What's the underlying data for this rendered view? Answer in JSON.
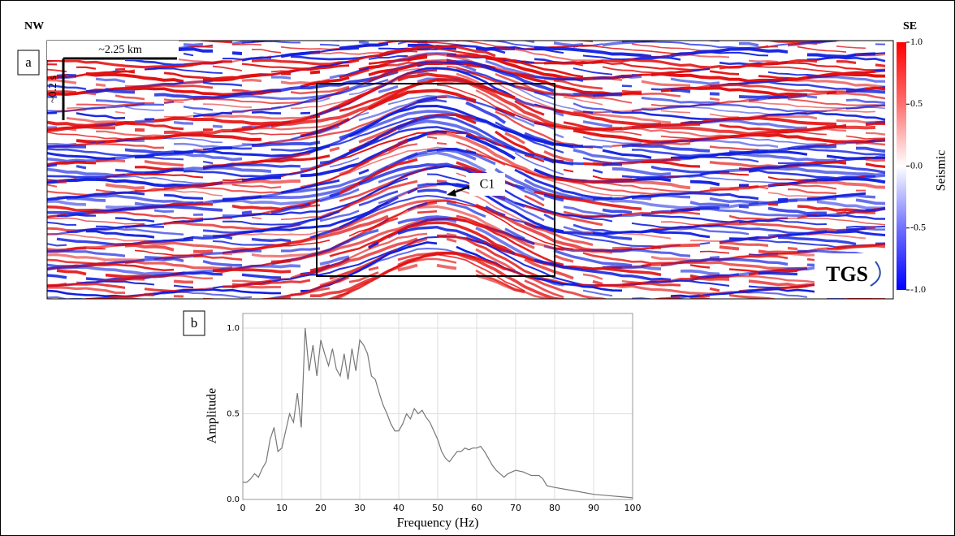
{
  "panel_a": {
    "panel_label": "a",
    "left_label": "NW",
    "right_label": "SE",
    "scale_horizontal": "~2.25 km",
    "scale_vertical": "~0.2 s",
    "annotation": "C1",
    "logo": "TGS",
    "colorbar": {
      "label": "Seismic",
      "lim": [
        -1,
        1
      ],
      "ticks": [
        {
          "value": 1,
          "label": "1.0"
        },
        {
          "value": 0.5,
          "label": "0.5"
        },
        {
          "value": 0,
          "label": "0.0"
        },
        {
          "value": -0.5,
          "label": "-0.5"
        },
        {
          "value": -1,
          "label": "-1.0"
        }
      ]
    }
  },
  "chart_data": {
    "type": "line",
    "panel_label": "b",
    "xlabel": "Frequency (Hz)",
    "ylabel": "Amplitude",
    "color": "#777777",
    "x": [
      0,
      1,
      2,
      3,
      4,
      5,
      6,
      7,
      8,
      9,
      10,
      11,
      12,
      13,
      14,
      15,
      16,
      17,
      18,
      19,
      20,
      21,
      22,
      23,
      24,
      25,
      26,
      27,
      28,
      29,
      30,
      31,
      32,
      33,
      34,
      35,
      36,
      37,
      38,
      39,
      40,
      41,
      42,
      43,
      44,
      45,
      46,
      47,
      48,
      49,
      50,
      51,
      52,
      53,
      54,
      55,
      56,
      57,
      58,
      59,
      60,
      61,
      62,
      63,
      64,
      65,
      66,
      67,
      68,
      69,
      70,
      72,
      74,
      76,
      77,
      78,
      80,
      85,
      90,
      95,
      100
    ],
    "values": [
      0.1,
      0.1,
      0.12,
      0.15,
      0.13,
      0.18,
      0.22,
      0.35,
      0.42,
      0.28,
      0.3,
      0.4,
      0.5,
      0.45,
      0.62,
      0.42,
      1.0,
      0.75,
      0.9,
      0.72,
      0.93,
      0.85,
      0.78,
      0.88,
      0.76,
      0.72,
      0.85,
      0.7,
      0.88,
      0.75,
      0.93,
      0.9,
      0.85,
      0.72,
      0.7,
      0.62,
      0.55,
      0.5,
      0.44,
      0.4,
      0.4,
      0.44,
      0.5,
      0.47,
      0.53,
      0.5,
      0.52,
      0.48,
      0.45,
      0.4,
      0.35,
      0.28,
      0.24,
      0.22,
      0.25,
      0.28,
      0.28,
      0.3,
      0.29,
      0.3,
      0.3,
      0.31,
      0.28,
      0.24,
      0.2,
      0.17,
      0.15,
      0.13,
      0.15,
      0.16,
      0.17,
      0.16,
      0.14,
      0.14,
      0.12,
      0.08,
      0.07,
      0.05,
      0.03,
      0.02,
      0.01
    ],
    "xlim": [
      0,
      100
    ],
    "xticks": [
      0,
      10,
      20,
      30,
      40,
      50,
      60,
      70,
      80,
      90,
      100
    ],
    "ylim": [
      0,
      1.085
    ],
    "yticks": [
      {
        "value": 0,
        "label": "0.0"
      },
      {
        "value": 0.5,
        "label": "0.5"
      },
      {
        "value": 1,
        "label": "1.0"
      }
    ],
    "grid": true
  }
}
